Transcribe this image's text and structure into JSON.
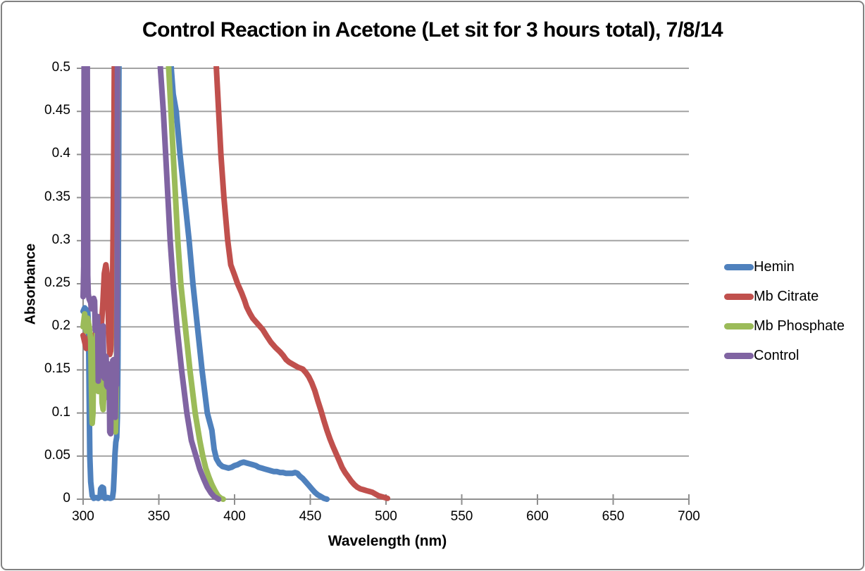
{
  "header": {
    "title": "Control Reaction in Acetone (Let sit for 3 hours total), 7/8/14"
  },
  "chart_data": {
    "type": "line",
    "title": "Control Reaction in Acetone (Let sit for 3 hours total), 7/8/14",
    "xlabel": "Wavelength (nm)",
    "ylabel": "Absorbance",
    "xlim": [
      300,
      700
    ],
    "ylim": [
      0,
      0.5
    ],
    "x_ticks": [
      300,
      350,
      400,
      450,
      500,
      550,
      600,
      650,
      700
    ],
    "y_ticks": [
      0,
      0.05,
      0.1,
      0.15,
      0.2,
      0.25,
      0.3,
      0.35,
      0.4,
      0.45,
      0.5
    ],
    "y_tick_labels": [
      "0",
      "0.05",
      "0.1",
      "0.15",
      "0.2",
      "0.25",
      "0.3",
      "0.35",
      "0.4",
      "0.45",
      "0.5"
    ],
    "grid": "horizontal",
    "legend_position": "right",
    "colors": {
      "gridline": "#a3a3a3",
      "axis": "#8f8f8f",
      "text": "#000000",
      "border": "#818181"
    },
    "legend": [
      {
        "name": "Hemin",
        "color": "#4F81BD"
      },
      {
        "name": "Mb Citrate",
        "color": "#C0504D"
      },
      {
        "name": "Mb Phosphate",
        "color": "#9BBB59"
      },
      {
        "name": "Control",
        "color": "#8064A2"
      }
    ],
    "series": [
      {
        "name": "Hemin",
        "color": "#4F81BD",
        "points": [
          [
            300,
            0.218
          ],
          [
            301,
            0.222
          ],
          [
            302,
            0.22
          ],
          [
            303,
            0.219
          ],
          [
            303.6,
            0.2
          ],
          [
            304,
            0.12
          ],
          [
            304.4,
            0.05
          ],
          [
            305,
            0.02
          ],
          [
            306,
            0.004
          ],
          [
            307,
            0.001
          ],
          [
            308.5,
            0.002
          ],
          [
            310,
            0.001
          ],
          [
            311.2,
            0.003
          ],
          [
            311.6,
            0.012
          ],
          [
            312.4,
            0.014
          ],
          [
            313.4,
            0.013
          ],
          [
            313.8,
            0.004
          ],
          [
            314.4,
            0.001
          ],
          [
            316,
            0.002
          ],
          [
            318,
            0.001
          ],
          [
            319.4,
            0.002
          ],
          [
            320,
            0.01
          ],
          [
            320.6,
            0.032
          ],
          [
            321,
            0.052
          ],
          [
            321.6,
            0.066
          ],
          [
            322.2,
            0.072
          ],
          [
            322.6,
            0.095
          ],
          [
            323,
            0.16
          ],
          [
            323.4,
            0.35
          ],
          [
            323.8,
            0.62
          ],
          [
            357.3,
            0.62
          ],
          [
            358.2,
            0.5
          ],
          [
            359.5,
            0.47
          ],
          [
            361.5,
            0.45
          ],
          [
            364,
            0.4
          ],
          [
            367,
            0.35
          ],
          [
            370,
            0.3
          ],
          [
            372.5,
            0.25
          ],
          [
            375.5,
            0.2
          ],
          [
            378.5,
            0.15
          ],
          [
            382,
            0.1
          ],
          [
            385,
            0.08
          ],
          [
            386.5,
            0.058
          ],
          [
            388,
            0.047
          ],
          [
            390,
            0.041
          ],
          [
            392,
            0.038
          ],
          [
            394,
            0.037
          ],
          [
            396,
            0.036
          ],
          [
            398,
            0.037
          ],
          [
            400,
            0.039
          ],
          [
            402,
            0.04
          ],
          [
            404,
            0.042
          ],
          [
            406,
            0.043
          ],
          [
            408,
            0.042
          ],
          [
            410,
            0.041
          ],
          [
            412,
            0.04
          ],
          [
            414,
            0.039
          ],
          [
            416,
            0.037
          ],
          [
            418,
            0.036
          ],
          [
            420,
            0.035
          ],
          [
            422,
            0.034
          ],
          [
            424,
            0.033
          ],
          [
            426,
            0.032
          ],
          [
            428,
            0.032
          ],
          [
            430,
            0.031
          ],
          [
            432,
            0.031
          ],
          [
            434,
            0.03
          ],
          [
            436,
            0.03
          ],
          [
            438,
            0.03
          ],
          [
            440,
            0.031
          ],
          [
            441.5,
            0.03
          ],
          [
            443,
            0.027
          ],
          [
            445,
            0.024
          ],
          [
            447,
            0.02
          ],
          [
            449,
            0.016
          ],
          [
            451,
            0.012
          ],
          [
            453,
            0.008
          ],
          [
            455,
            0.005
          ],
          [
            457,
            0.003
          ],
          [
            459,
            0.001
          ],
          [
            461,
            0
          ]
        ]
      },
      {
        "name": "Mb Citrate",
        "color": "#C0504D",
        "points": [
          [
            300,
            0.19
          ],
          [
            302,
            0.175
          ],
          [
            304,
            0.188
          ],
          [
            306,
            0.178
          ],
          [
            308,
            0.192
          ],
          [
            310,
            0.182
          ],
          [
            312,
            0.2
          ],
          [
            313,
            0.225
          ],
          [
            314,
            0.262
          ],
          [
            315,
            0.272
          ],
          [
            315.8,
            0.262
          ],
          [
            316.4,
            0.225
          ],
          [
            317,
            0.19
          ],
          [
            317.6,
            0.168
          ],
          [
            318.2,
            0.172
          ],
          [
            318.8,
            0.195
          ],
          [
            319.4,
            0.24
          ],
          [
            319.8,
            0.31
          ],
          [
            320.4,
            0.45
          ],
          [
            321,
            0.62
          ],
          [
            385.8,
            0.62
          ],
          [
            388,
            0.5
          ],
          [
            389.5,
            0.45
          ],
          [
            391,
            0.4
          ],
          [
            393,
            0.35
          ],
          [
            395.5,
            0.3
          ],
          [
            397.5,
            0.272
          ],
          [
            400,
            0.26
          ],
          [
            402,
            0.25
          ],
          [
            404.5,
            0.24
          ],
          [
            406.5,
            0.231
          ],
          [
            408,
            0.223
          ],
          [
            410,
            0.216
          ],
          [
            412,
            0.21
          ],
          [
            414,
            0.206
          ],
          [
            416,
            0.202
          ],
          [
            418.5,
            0.197
          ],
          [
            421,
            0.19
          ],
          [
            424,
            0.182
          ],
          [
            427,
            0.176
          ],
          [
            430,
            0.171
          ],
          [
            432,
            0.167
          ],
          [
            434,
            0.162
          ],
          [
            436,
            0.159
          ],
          [
            439,
            0.156
          ],
          [
            442,
            0.153
          ],
          [
            445,
            0.151
          ],
          [
            447,
            0.147
          ],
          [
            449,
            0.142
          ],
          [
            451,
            0.135
          ],
          [
            453,
            0.126
          ],
          [
            455,
            0.114
          ],
          [
            457,
            0.103
          ],
          [
            459,
            0.091
          ],
          [
            461,
            0.08
          ],
          [
            463,
            0.07
          ],
          [
            465,
            0.061
          ],
          [
            467,
            0.053
          ],
          [
            469,
            0.045
          ],
          [
            471,
            0.037
          ],
          [
            473,
            0.031
          ],
          [
            475,
            0.026
          ],
          [
            477,
            0.021
          ],
          [
            479,
            0.017
          ],
          [
            481,
            0.014
          ],
          [
            483,
            0.012
          ],
          [
            485,
            0.011
          ],
          [
            487,
            0.01
          ],
          [
            489,
            0.009
          ],
          [
            491,
            0.008
          ],
          [
            493,
            0.006
          ],
          [
            495,
            0.004
          ],
          [
            497,
            0.003
          ],
          [
            499,
            0.002
          ],
          [
            501,
            0.001
          ]
        ]
      },
      {
        "name": "Mb Phosphate",
        "color": "#9BBB59",
        "points": [
          [
            300,
            0.2
          ],
          [
            301,
            0.215
          ],
          [
            302,
            0.195
          ],
          [
            303,
            0.21
          ],
          [
            304,
            0.2
          ],
          [
            305,
            0.185
          ],
          [
            305.5,
            0.13
          ],
          [
            306,
            0.088
          ],
          [
            306.5,
            0.1
          ],
          [
            307,
            0.18
          ],
          [
            308,
            0.178
          ],
          [
            309,
            0.195
          ],
          [
            310,
            0.125
          ],
          [
            311,
            0.18
          ],
          [
            312,
            0.148
          ],
          [
            312.5,
            0.112
          ],
          [
            313.2,
            0.104
          ],
          [
            313.8,
            0.128
          ],
          [
            314.5,
            0.148
          ],
          [
            315.5,
            0.145
          ],
          [
            316,
            0.118
          ],
          [
            317,
            0.138
          ],
          [
            318,
            0.088
          ],
          [
            319,
            0.118
          ],
          [
            319.6,
            0.134
          ],
          [
            320.2,
            0.128
          ],
          [
            320.8,
            0.092
          ],
          [
            321.4,
            0.078
          ],
          [
            322,
            0.128
          ],
          [
            322.5,
            0.3
          ],
          [
            323,
            0.62
          ],
          [
            355.3,
            0.62
          ],
          [
            356.5,
            0.5
          ],
          [
            358,
            0.45
          ],
          [
            359.5,
            0.4
          ],
          [
            361,
            0.35
          ],
          [
            362.5,
            0.3
          ],
          [
            364.5,
            0.25
          ],
          [
            367.5,
            0.2
          ],
          [
            370.5,
            0.15
          ],
          [
            374,
            0.1
          ],
          [
            377,
            0.068
          ],
          [
            379,
            0.05
          ],
          [
            381,
            0.036
          ],
          [
            383,
            0.026
          ],
          [
            385,
            0.017
          ],
          [
            387,
            0.01
          ],
          [
            389,
            0.004
          ],
          [
            391,
            0.001
          ],
          [
            392.5,
            0
          ]
        ]
      },
      {
        "name": "Control",
        "color": "#8064A2",
        "points": [
          [
            300,
            0.235
          ],
          [
            300.4,
            0.27
          ],
          [
            300.8,
            0.62
          ],
          [
            302.6,
            0.62
          ],
          [
            303,
            0.26
          ],
          [
            303.4,
            0.238
          ],
          [
            304,
            0.232
          ],
          [
            305,
            0.228
          ],
          [
            305.4,
            0.221
          ],
          [
            306.6,
            0.221
          ],
          [
            307,
            0.233
          ],
          [
            307.6,
            0.23
          ],
          [
            308,
            0.196
          ],
          [
            308.4,
            0.212
          ],
          [
            309,
            0.206
          ],
          [
            309.6,
            0.212
          ],
          [
            310,
            0.137
          ],
          [
            310.4,
            0.19
          ],
          [
            311,
            0.193
          ],
          [
            311.6,
            0.17
          ],
          [
            312,
            0.166
          ],
          [
            312.4,
            0.2
          ],
          [
            313.2,
            0.201
          ],
          [
            313.6,
            0.142
          ],
          [
            314.2,
            0.14
          ],
          [
            314.6,
            0.166
          ],
          [
            315.2,
            0.165
          ],
          [
            315.6,
            0.132
          ],
          [
            316.2,
            0.13
          ],
          [
            316.6,
            0.157
          ],
          [
            317.2,
            0.155
          ],
          [
            317.6,
            0.078
          ],
          [
            318.2,
            0.076
          ],
          [
            318.6,
            0.131
          ],
          [
            319.2,
            0.132
          ],
          [
            319.6,
            0.161
          ],
          [
            320.2,
            0.162
          ],
          [
            320.6,
            0.097
          ],
          [
            321.2,
            0.095
          ],
          [
            321.6,
            0.131
          ],
          [
            322.2,
            0.133
          ],
          [
            322.5,
            0.28
          ],
          [
            322.8,
            0.62
          ],
          [
            349.8,
            0.62
          ],
          [
            351,
            0.5
          ],
          [
            353,
            0.45
          ],
          [
            354.5,
            0.4
          ],
          [
            356,
            0.35
          ],
          [
            357.5,
            0.3
          ],
          [
            359.5,
            0.25
          ],
          [
            362,
            0.2
          ],
          [
            365,
            0.15
          ],
          [
            368.5,
            0.1
          ],
          [
            371.5,
            0.068
          ],
          [
            374.5,
            0.05
          ],
          [
            377,
            0.035
          ],
          [
            379.5,
            0.024
          ],
          [
            382,
            0.014
          ],
          [
            384.5,
            0.007
          ],
          [
            386.5,
            0.003
          ],
          [
            388.5,
            0.001
          ],
          [
            389.5,
            0
          ]
        ]
      }
    ]
  }
}
